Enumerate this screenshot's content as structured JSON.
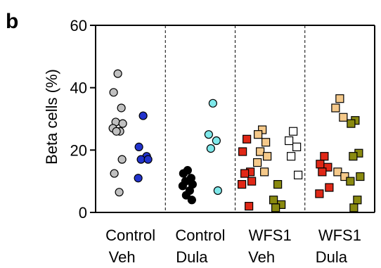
{
  "chart_data": {
    "type": "scatter",
    "panel_label": "b",
    "ylabel": "Beta cells (%)",
    "ylim": [
      0,
      60
    ],
    "yticks": [
      0,
      20,
      40,
      60
    ],
    "ytick_labels": [
      "0",
      "20",
      "40",
      "60"
    ],
    "group_separators": "dashed",
    "groups": [
      {
        "label_line1": "Control",
        "label_line2": "Veh",
        "series": [
          {
            "marker": "circle",
            "fill": "#c0c0c0",
            "values": [
              44.5,
              38.5,
              33.5,
              29,
              28.5,
              27,
              26,
              26,
              17,
              12.5,
              6.5
            ]
          },
          {
            "marker": "circle",
            "fill": "#2233cc",
            "values": [
              31,
              21,
              18,
              17,
              17,
              11
            ]
          }
        ]
      },
      {
        "label_line1": "Control",
        "label_line2": "Dula",
        "series": [
          {
            "marker": "circle",
            "fill": "#000000",
            "values": [
              13.5,
              12.5,
              11,
              10,
              9,
              8.5,
              7,
              5.5,
              4
            ]
          },
          {
            "marker": "circle",
            "fill": "#7ee8ea",
            "values": [
              35,
              25,
              23,
              20.5,
              7
            ]
          }
        ]
      },
      {
        "label_line1": "WFS1",
        "label_line2": "Veh",
        "series": [
          {
            "marker": "square",
            "fill": "#e02817",
            "values": [
              23.5,
              19.5,
              13,
              12.5,
              10,
              9,
              2
            ]
          },
          {
            "marker": "square",
            "fill": "#f5c98a",
            "values": [
              26.5,
              25,
              22.5,
              19.5,
              18,
              16,
              13
            ]
          },
          {
            "marker": "square",
            "fill": "#8a8a10",
            "values": [
              9,
              4,
              2.5,
              1.5
            ]
          },
          {
            "marker": "square",
            "fill": "#ffffff",
            "values": [
              26,
              23,
              21,
              18,
              12
            ]
          }
        ]
      },
      {
        "label_line1": "WFS1",
        "label_line2": "Dula",
        "series": [
          {
            "marker": "square",
            "fill": "#e02817",
            "values": [
              18,
              15.5,
              14.5,
              13,
              8,
              6
            ]
          },
          {
            "marker": "square",
            "fill": "#f5c98a",
            "values": [
              36.5,
              33.5,
              30.5,
              13,
              11.5
            ]
          },
          {
            "marker": "square",
            "fill": "#8a8a10",
            "values": [
              29.5,
              28.5,
              19,
              18,
              11.5,
              10,
              4,
              1.5
            ]
          }
        ]
      }
    ]
  }
}
